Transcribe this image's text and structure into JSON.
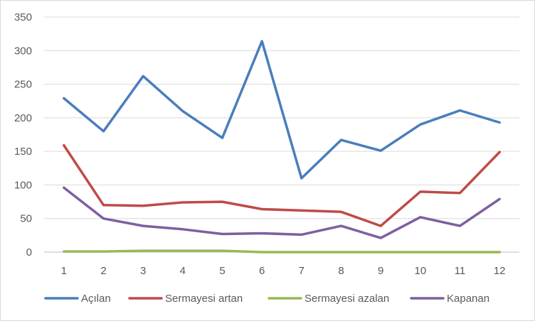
{
  "chart_data": {
    "type": "line",
    "categories": [
      "1",
      "2",
      "3",
      "4",
      "5",
      "6",
      "7",
      "8",
      "9",
      "10",
      "11",
      "12"
    ],
    "ylim": [
      0,
      350
    ],
    "yticks": [
      "0",
      "50",
      "100",
      "150",
      "200",
      "250",
      "300",
      "350"
    ],
    "grid": true,
    "legend_position": "bottom",
    "series": [
      {
        "name": "Açılan",
        "color": "#4a7ebb",
        "values": [
          229,
          180,
          262,
          210,
          170,
          314,
          110,
          167,
          151,
          190,
          211,
          193
        ]
      },
      {
        "name": "Sermayesi artan",
        "color": "#be4b48",
        "values": [
          159,
          70,
          69,
          74,
          75,
          64,
          62,
          60,
          39,
          90,
          88,
          149
        ]
      },
      {
        "name": "Sermayesi azalan",
        "color": "#98b954",
        "values": [
          1,
          1,
          2,
          2,
          2,
          0,
          0,
          0,
          0,
          0,
          0,
          0
        ]
      },
      {
        "name": "Kapanan",
        "color": "#7d5fa0",
        "values": [
          96,
          50,
          39,
          34,
          27,
          28,
          26,
          39,
          21,
          52,
          39,
          79
        ]
      }
    ]
  }
}
